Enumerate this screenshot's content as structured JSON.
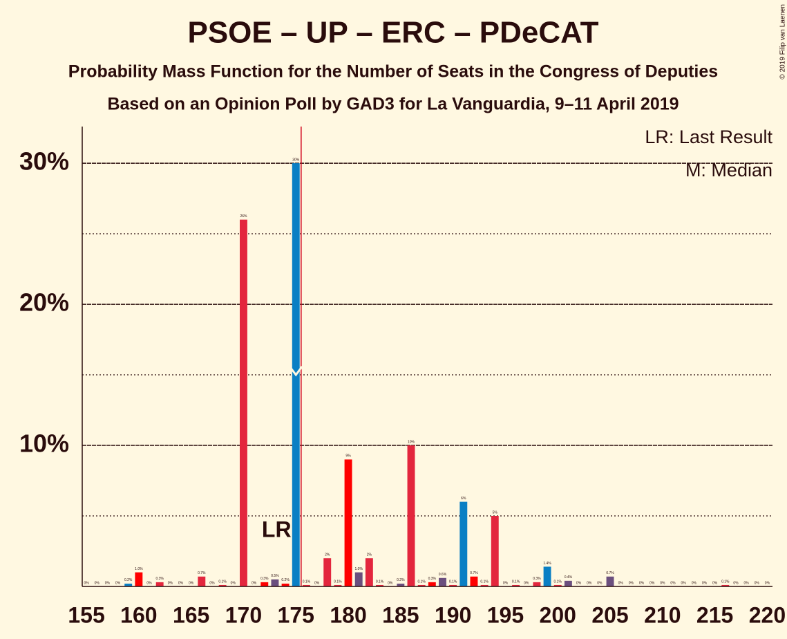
{
  "chart_data": {
    "type": "bar",
    "title": "PSOE – UP – ERC – PDeCAT",
    "subtitle": "Probability Mass Function for the Number of Seats in the Congress of Deputies",
    "subtitle2": "Based on an Opinion Poll by GAD3 for La Vanguardia, 9–11 April 2019",
    "legend_last_result": "LR: Last Result",
    "legend_median": "M: Median",
    "lr_annotation": "LR",
    "copyright": "© 2019 Filip van Laenen",
    "x": [
      155,
      156,
      157,
      158,
      159,
      160,
      161,
      162,
      163,
      164,
      165,
      166,
      167,
      168,
      169,
      170,
      171,
      172,
      173,
      174,
      175,
      176,
      177,
      178,
      179,
      180,
      181,
      182,
      183,
      184,
      185,
      186,
      187,
      188,
      189,
      190,
      191,
      192,
      193,
      194,
      195,
      196,
      197,
      198,
      199,
      200,
      201,
      202,
      203,
      204,
      205,
      206,
      207,
      208,
      209,
      210,
      211,
      212,
      213,
      214,
      215,
      216,
      217,
      218,
      219,
      220
    ],
    "values": [
      0,
      0,
      0,
      0,
      0.2,
      1.0,
      0,
      0.3,
      0,
      0,
      0,
      0.7,
      0,
      0.1,
      0,
      26,
      0,
      0.3,
      0.5,
      0.2,
      30,
      0.1,
      0,
      2,
      0.1,
      9,
      1.0,
      2,
      0.1,
      0,
      0.2,
      10,
      0.1,
      0.3,
      0.6,
      0.1,
      6,
      0.7,
      0.1,
      5,
      0,
      0.1,
      0,
      0.3,
      1.4,
      0.1,
      0.4,
      0,
      0,
      0,
      0.7,
      0,
      0,
      0,
      0,
      0,
      0,
      0,
      0,
      0,
      0,
      0.1,
      0,
      0,
      0,
      0
    ],
    "value_labels": [
      "0%",
      "0%",
      "0%",
      "0%",
      "0.2%",
      "1.0%",
      "0%",
      "0.3%",
      "0%",
      "0%",
      "0%",
      "0.7%",
      "0%",
      "0.1%",
      "0%",
      "26%",
      "0%",
      "0.3%",
      "0.5%",
      "0.2%",
      "30%",
      "0.1%",
      "0%",
      "2%",
      "0.1%",
      "9%",
      "1.0%",
      "2%",
      "0.1%",
      "0%",
      "0.2%",
      "10%",
      "0.1%",
      "0.3%",
      "0.6%",
      "0.1%",
      "6%",
      "0.7%",
      "0.1%",
      "5%",
      "0%",
      "0.1%",
      "0%",
      "0.3%",
      "1.4%",
      "0.1%",
      "0.4%",
      "0%",
      "0%",
      "0%",
      "0.7%",
      "0%",
      "0%",
      "0%",
      "0%",
      "0%",
      "0%",
      "0%",
      "0%",
      "0%",
      "0%",
      "0.1%",
      "0%",
      "0%",
      "0%",
      "0%"
    ],
    "colors": [
      "#e3263d",
      "#e3263d",
      "#e3263d",
      "#e3263d",
      "#0a7fc4",
      "#ff0000",
      "#e3263d",
      "#e3263d",
      "#e3263d",
      "#e3263d",
      "#e3263d",
      "#e3263d",
      "#e3263d",
      "#e3263d",
      "#e3263d",
      "#e3263d",
      "#e3263d",
      "#ff0000",
      "#6b4f7e",
      "#ff0000",
      "#0a7fc4",
      "#e3263d",
      "#e3263d",
      "#e3263d",
      "#e3263d",
      "#ff0000",
      "#6b4f7e",
      "#e3263d",
      "#e3263d",
      "#e3263d",
      "#6b4f7e",
      "#e3263d",
      "#e3263d",
      "#ff0000",
      "#6b4f7e",
      "#e3263d",
      "#0a7fc4",
      "#ff0000",
      "#e3263d",
      "#e3263d",
      "#e3263d",
      "#e3263d",
      "#e3263d",
      "#e3263d",
      "#0a7fc4",
      "#e3263d",
      "#6b4f7e",
      "#e3263d",
      "#e3263d",
      "#e3263d",
      "#6b4f7e",
      "#e3263d",
      "#e3263d",
      "#e3263d",
      "#e3263d",
      "#e3263d",
      "#e3263d",
      "#e3263d",
      "#e3263d",
      "#e3263d",
      "#e3263d",
      "#e3263d",
      "#e3263d",
      "#e3263d",
      "#e3263d",
      "#e3263d"
    ],
    "xlim": [
      154.6,
      220.5
    ],
    "xticks": [
      155,
      160,
      165,
      170,
      175,
      180,
      185,
      190,
      195,
      200,
      205,
      210,
      215,
      220
    ],
    "ylim": [
      0,
      32.6
    ],
    "yticks": [
      {
        "value": 10,
        "label": "10%"
      },
      {
        "value": 20,
        "label": "20%"
      },
      {
        "value": 30,
        "label": "30%"
      }
    ],
    "minor_yticks": [
      5,
      15,
      25
    ],
    "grid": true,
    "median": 175,
    "last_result": 175,
    "last_result_color": "#d0021b"
  }
}
